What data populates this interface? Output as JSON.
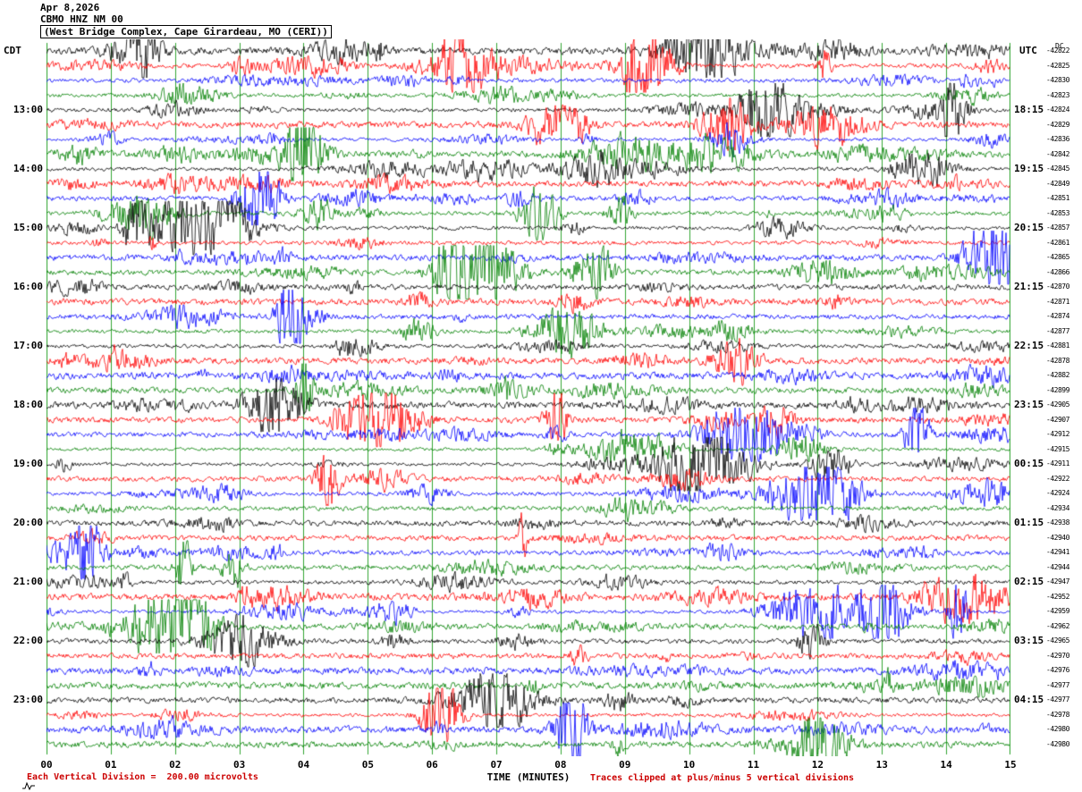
{
  "header": {
    "date": "Apr 8,2026",
    "station": "CBMO HNZ NM 00",
    "location": "(West Bridge Complex, Cape Girardeau, MO (CERI))",
    "left_timezone": "CDT",
    "right_timezone": "UTC",
    "dc_column_label": "DC"
  },
  "footer": {
    "scale_note": "Each Vertical Division =  200.00 microvolts",
    "xaxis_label": "TIME (MINUTES)",
    "clip_note": "Traces clipped at plus/minus 5 vertical divisions"
  },
  "chart_data": {
    "type": "line",
    "subtype": "helicorder-seismogram",
    "title": "CBMO HNZ NM 00 (West Bridge Complex, Cape Girardeau, MO (CERI))",
    "xlabel": "TIME (MINUTES)",
    "x_range_minutes": [
      0,
      15
    ],
    "x_ticks": [
      "00",
      "01",
      "02",
      "03",
      "04",
      "05",
      "06",
      "07",
      "08",
      "09",
      "10",
      "11",
      "12",
      "13",
      "14",
      "15"
    ],
    "minutes_per_row": 15,
    "vertical_division_microvolts": 200.0,
    "clip_divisions": 5,
    "left_axis_timezone": "CDT",
    "right_axis_timezone": "UTC",
    "trace_color_cycle": [
      "#000000",
      "#ff0000",
      "#0000ff",
      "#008000"
    ],
    "gridline_color": "#009000",
    "rows": [
      {
        "start": "12:00",
        "cdt": "",
        "utc": "",
        "dc": "-42822",
        "color": "#000000"
      },
      {
        "start": "12:15",
        "cdt": "",
        "utc": "",
        "dc": "-42825",
        "color": "#ff0000"
      },
      {
        "start": "12:30",
        "cdt": "",
        "utc": "",
        "dc": "-42830",
        "color": "#0000ff"
      },
      {
        "start": "12:45",
        "cdt": "",
        "utc": "",
        "dc": "-42823",
        "color": "#008000"
      },
      {
        "start": "13:00",
        "cdt": "13:00",
        "utc": "18:15",
        "dc": "-42824",
        "color": "#000000"
      },
      {
        "start": "13:15",
        "cdt": "",
        "utc": "",
        "dc": "-42829",
        "color": "#ff0000"
      },
      {
        "start": "13:30",
        "cdt": "",
        "utc": "",
        "dc": "-42836",
        "color": "#0000ff"
      },
      {
        "start": "13:45",
        "cdt": "",
        "utc": "",
        "dc": "-42842",
        "color": "#008000"
      },
      {
        "start": "14:00",
        "cdt": "14:00",
        "utc": "19:15",
        "dc": "-42845",
        "color": "#000000"
      },
      {
        "start": "14:15",
        "cdt": "",
        "utc": "",
        "dc": "-42849",
        "color": "#ff0000"
      },
      {
        "start": "14:30",
        "cdt": "",
        "utc": "",
        "dc": "-42851",
        "color": "#0000ff"
      },
      {
        "start": "14:45",
        "cdt": "",
        "utc": "",
        "dc": "-42853",
        "color": "#008000"
      },
      {
        "start": "15:00",
        "cdt": "15:00",
        "utc": "20:15",
        "dc": "-42857",
        "color": "#000000"
      },
      {
        "start": "15:15",
        "cdt": "",
        "utc": "",
        "dc": "-42861",
        "color": "#ff0000"
      },
      {
        "start": "15:30",
        "cdt": "",
        "utc": "",
        "dc": "-42865",
        "color": "#0000ff"
      },
      {
        "start": "15:45",
        "cdt": "",
        "utc": "",
        "dc": "-42866",
        "color": "#008000"
      },
      {
        "start": "16:00",
        "cdt": "16:00",
        "utc": "21:15",
        "dc": "-42870",
        "color": "#000000"
      },
      {
        "start": "16:15",
        "cdt": "",
        "utc": "",
        "dc": "-42871",
        "color": "#ff0000"
      },
      {
        "start": "16:30",
        "cdt": "",
        "utc": "",
        "dc": "-42874",
        "color": "#0000ff"
      },
      {
        "start": "16:45",
        "cdt": "",
        "utc": "",
        "dc": "-42877",
        "color": "#008000"
      },
      {
        "start": "17:00",
        "cdt": "17:00",
        "utc": "22:15",
        "dc": "-42881",
        "color": "#000000"
      },
      {
        "start": "17:15",
        "cdt": "",
        "utc": "",
        "dc": "-42878",
        "color": "#ff0000"
      },
      {
        "start": "17:30",
        "cdt": "",
        "utc": "",
        "dc": "-42882",
        "color": "#0000ff"
      },
      {
        "start": "17:45",
        "cdt": "",
        "utc": "",
        "dc": "-42899",
        "color": "#008000"
      },
      {
        "start": "18:00",
        "cdt": "18:00",
        "utc": "23:15",
        "dc": "-42905",
        "color": "#000000"
      },
      {
        "start": "18:15",
        "cdt": "",
        "utc": "",
        "dc": "-42907",
        "color": "#ff0000"
      },
      {
        "start": "18:30",
        "cdt": "",
        "utc": "",
        "dc": "-42912",
        "color": "#0000ff"
      },
      {
        "start": "18:45",
        "cdt": "",
        "utc": "",
        "dc": "-42915",
        "color": "#008000"
      },
      {
        "start": "19:00",
        "cdt": "19:00",
        "utc": "00:15",
        "dc": "-42911",
        "color": "#000000"
      },
      {
        "start": "19:15",
        "cdt": "",
        "utc": "",
        "dc": "-42922",
        "color": "#ff0000"
      },
      {
        "start": "19:30",
        "cdt": "",
        "utc": "",
        "dc": "-42924",
        "color": "#0000ff"
      },
      {
        "start": "19:45",
        "cdt": "",
        "utc": "",
        "dc": "-42934",
        "color": "#008000"
      },
      {
        "start": "20:00",
        "cdt": "20:00",
        "utc": "01:15",
        "dc": "-42938",
        "color": "#000000"
      },
      {
        "start": "20:15",
        "cdt": "",
        "utc": "",
        "dc": "-42940",
        "color": "#ff0000"
      },
      {
        "start": "20:30",
        "cdt": "",
        "utc": "",
        "dc": "-42941",
        "color": "#0000ff"
      },
      {
        "start": "20:45",
        "cdt": "",
        "utc": "",
        "dc": "-42944",
        "color": "#008000"
      },
      {
        "start": "21:00",
        "cdt": "21:00",
        "utc": "02:15",
        "dc": "-42947",
        "color": "#000000"
      },
      {
        "start": "21:15",
        "cdt": "",
        "utc": "",
        "dc": "-42952",
        "color": "#ff0000"
      },
      {
        "start": "21:30",
        "cdt": "",
        "utc": "",
        "dc": "-42959",
        "color": "#0000ff"
      },
      {
        "start": "21:45",
        "cdt": "",
        "utc": "",
        "dc": "-42962",
        "color": "#008000"
      },
      {
        "start": "22:00",
        "cdt": "22:00",
        "utc": "03:15",
        "dc": "-42965",
        "color": "#000000"
      },
      {
        "start": "22:15",
        "cdt": "",
        "utc": "",
        "dc": "-42970",
        "color": "#ff0000"
      },
      {
        "start": "22:30",
        "cdt": "",
        "utc": "",
        "dc": "-42976",
        "color": "#0000ff"
      },
      {
        "start": "22:45",
        "cdt": "",
        "utc": "",
        "dc": "-42977",
        "color": "#008000"
      },
      {
        "start": "23:00",
        "cdt": "23:00",
        "utc": "04:15",
        "dc": "-42977",
        "color": "#000000"
      },
      {
        "start": "23:15",
        "cdt": "",
        "utc": "",
        "dc": "-42978",
        "color": "#ff0000"
      },
      {
        "start": "23:30",
        "cdt": "",
        "utc": "",
        "dc": "-42980",
        "color": "#0000ff"
      },
      {
        "start": "23:45",
        "cdt": "",
        "utc": "",
        "dc": "-42980",
        "color": "#008000"
      }
    ]
  }
}
